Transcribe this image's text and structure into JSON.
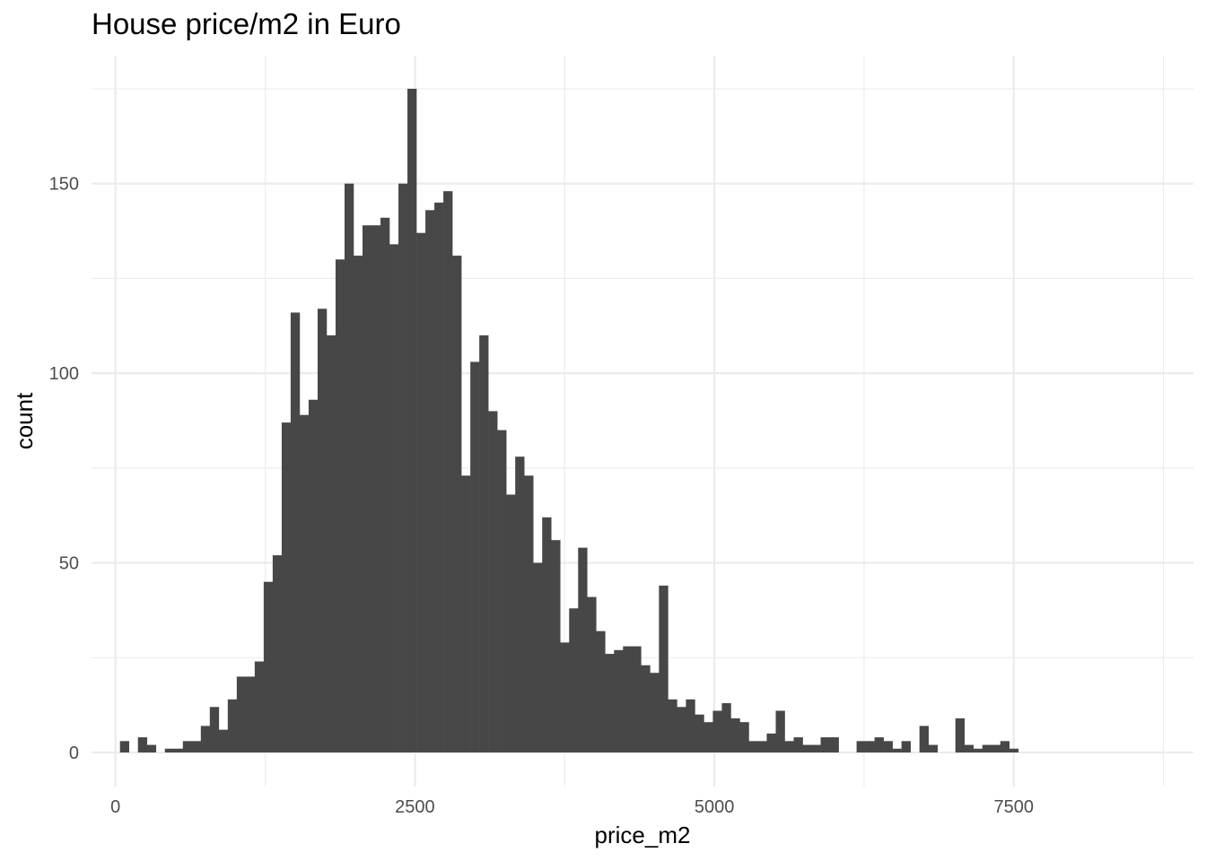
{
  "chart_data": {
    "type": "bar",
    "title": "House price/m2 in Euro",
    "xlabel": "price_m2",
    "ylabel": "count",
    "bin_width": 75,
    "first_bin_center": 75,
    "xlim": [
      -200,
      9000
    ],
    "ylim": [
      -7,
      175
    ],
    "x_ticks": [
      0,
      2500,
      5000,
      7500
    ],
    "y_ticks": [
      0,
      50,
      100,
      150
    ],
    "grid": true,
    "color": "#474747",
    "values": [
      3,
      0,
      4,
      2,
      0,
      1,
      1,
      3,
      3,
      7,
      12,
      6,
      14,
      20,
      20,
      24,
      45,
      52,
      87,
      116,
      89,
      93,
      117,
      110,
      130,
      150,
      131,
      139,
      139,
      141,
      134,
      150,
      175,
      137,
      143,
      145,
      148,
      131,
      73,
      103,
      110,
      90,
      85,
      68,
      78,
      73,
      50,
      62,
      56,
      29,
      38,
      54,
      41,
      32,
      26,
      27,
      28,
      28,
      23,
      21,
      44,
      14,
      12,
      14,
      10,
      8,
      11,
      13,
      9,
      8,
      3,
      3,
      5,
      11,
      3,
      4,
      2,
      2,
      4,
      4,
      0,
      0,
      3,
      3,
      4,
      3,
      1,
      3,
      0,
      7,
      2,
      0,
      0,
      9,
      2,
      1,
      2,
      2,
      3,
      1
    ]
  }
}
